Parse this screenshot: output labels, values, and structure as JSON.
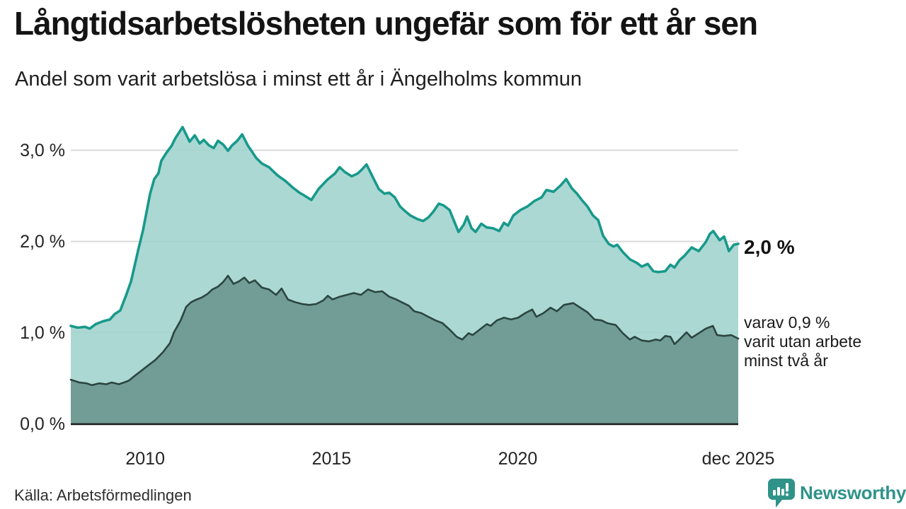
{
  "header": {
    "title": "Långtidsarbetslösheten ungefär som för ett år sen",
    "subtitle": "Andel som varit arbetslösa i minst ett år i Ängelholms kommun"
  },
  "chart_data": {
    "type": "area",
    "unit": "%",
    "title": "Långtidsarbetslösheten ungefär som för ett år sen",
    "subtitle": "Andel som varit arbetslösa i minst ett år i Ängelholms kommun",
    "grid": "horizontal",
    "x_axis": {
      "domain": [
        2008.0,
        2025.92
      ],
      "ticks": [
        {
          "v": 2010.0,
          "label": "2010"
        },
        {
          "v": 2015.0,
          "label": "2015"
        },
        {
          "v": 2020.0,
          "label": "2020"
        },
        {
          "v": 2025.92,
          "label": "dec 2025"
        }
      ]
    },
    "y_axis": {
      "ylim": [
        0,
        3.35
      ],
      "ticks": [
        {
          "v": 0,
          "label": "0,0 %"
        },
        {
          "v": 1,
          "label": "1,0 %"
        },
        {
          "v": 2,
          "label": "2,0 %"
        },
        {
          "v": 3,
          "label": "3,0 %"
        }
      ]
    },
    "colors": {
      "line_total": "#17998b",
      "fill_total": "#a3d4ce",
      "line_two_years": "#2b4540",
      "fill_two_years": "#709b95",
      "gridline": "#d7d7d7",
      "baseline": "#1b1b1b",
      "brand_teal": "#2f9389"
    },
    "series": [
      {
        "name": "arbetslösa minst ett år",
        "end_value": "2,0 %",
        "points": [
          [
            2008.0,
            1.07
          ],
          [
            2008.19,
            1.05
          ],
          [
            2008.38,
            1.06
          ],
          [
            2008.51,
            1.04
          ],
          [
            2008.67,
            1.09
          ],
          [
            2008.86,
            1.12
          ],
          [
            2009.05,
            1.14
          ],
          [
            2009.18,
            1.2
          ],
          [
            2009.33,
            1.24
          ],
          [
            2009.48,
            1.4
          ],
          [
            2009.62,
            1.56
          ],
          [
            2009.81,
            1.9
          ],
          [
            2009.94,
            2.12
          ],
          [
            2010.13,
            2.52
          ],
          [
            2010.24,
            2.68
          ],
          [
            2010.35,
            2.74
          ],
          [
            2010.43,
            2.88
          ],
          [
            2010.57,
            2.97
          ],
          [
            2010.7,
            3.04
          ],
          [
            2010.81,
            3.13
          ],
          [
            2011.0,
            3.25
          ],
          [
            2011.19,
            3.09
          ],
          [
            2011.33,
            3.16
          ],
          [
            2011.46,
            3.07
          ],
          [
            2011.57,
            3.11
          ],
          [
            2011.71,
            3.05
          ],
          [
            2011.84,
            3.02
          ],
          [
            2011.95,
            3.1
          ],
          [
            2012.09,
            3.06
          ],
          [
            2012.22,
            2.99
          ],
          [
            2012.33,
            3.05
          ],
          [
            2012.47,
            3.1
          ],
          [
            2012.6,
            3.17
          ],
          [
            2012.75,
            3.05
          ],
          [
            2012.85,
            2.99
          ],
          [
            2012.98,
            2.91
          ],
          [
            2013.13,
            2.85
          ],
          [
            2013.32,
            2.81
          ],
          [
            2013.55,
            2.72
          ],
          [
            2013.76,
            2.66
          ],
          [
            2013.95,
            2.59
          ],
          [
            2014.14,
            2.53
          ],
          [
            2014.27,
            2.5
          ],
          [
            2014.46,
            2.45
          ],
          [
            2014.65,
            2.57
          ],
          [
            2014.88,
            2.67
          ],
          [
            2015.09,
            2.74
          ],
          [
            2015.22,
            2.81
          ],
          [
            2015.35,
            2.76
          ],
          [
            2015.54,
            2.71
          ],
          [
            2015.7,
            2.74
          ],
          [
            2015.83,
            2.79
          ],
          [
            2015.94,
            2.84
          ],
          [
            2016.11,
            2.7
          ],
          [
            2016.27,
            2.57
          ],
          [
            2016.42,
            2.52
          ],
          [
            2016.55,
            2.53
          ],
          [
            2016.7,
            2.48
          ],
          [
            2016.84,
            2.38
          ],
          [
            2016.97,
            2.33
          ],
          [
            2017.12,
            2.28
          ],
          [
            2017.31,
            2.24
          ],
          [
            2017.46,
            2.22
          ],
          [
            2017.6,
            2.26
          ],
          [
            2017.73,
            2.32
          ],
          [
            2017.88,
            2.41
          ],
          [
            2018.01,
            2.39
          ],
          [
            2018.17,
            2.34
          ],
          [
            2018.3,
            2.21
          ],
          [
            2018.41,
            2.1
          ],
          [
            2018.55,
            2.18
          ],
          [
            2018.64,
            2.27
          ],
          [
            2018.76,
            2.14
          ],
          [
            2018.87,
            2.1
          ],
          [
            2019.02,
            2.19
          ],
          [
            2019.17,
            2.15
          ],
          [
            2019.34,
            2.14
          ],
          [
            2019.5,
            2.11
          ],
          [
            2019.63,
            2.2
          ],
          [
            2019.74,
            2.17
          ],
          [
            2019.88,
            2.28
          ],
          [
            2020.07,
            2.34
          ],
          [
            2020.26,
            2.38
          ],
          [
            2020.45,
            2.44
          ],
          [
            2020.64,
            2.48
          ],
          [
            2020.77,
            2.56
          ],
          [
            2020.96,
            2.54
          ],
          [
            2021.15,
            2.61
          ],
          [
            2021.3,
            2.68
          ],
          [
            2021.45,
            2.58
          ],
          [
            2021.59,
            2.52
          ],
          [
            2021.72,
            2.45
          ],
          [
            2021.87,
            2.38
          ],
          [
            2022.02,
            2.28
          ],
          [
            2022.16,
            2.23
          ],
          [
            2022.29,
            2.06
          ],
          [
            2022.44,
            1.97
          ],
          [
            2022.57,
            1.94
          ],
          [
            2022.67,
            1.96
          ],
          [
            2022.82,
            1.88
          ],
          [
            2023.01,
            1.8
          ],
          [
            2023.2,
            1.76
          ],
          [
            2023.33,
            1.72
          ],
          [
            2023.49,
            1.75
          ],
          [
            2023.64,
            1.67
          ],
          [
            2023.77,
            1.66
          ],
          [
            2023.96,
            1.67
          ],
          [
            2024.1,
            1.74
          ],
          [
            2024.21,
            1.71
          ],
          [
            2024.34,
            1.79
          ],
          [
            2024.48,
            1.84
          ],
          [
            2024.67,
            1.93
          ],
          [
            2024.86,
            1.89
          ],
          [
            2025.05,
            1.99
          ],
          [
            2025.16,
            2.08
          ],
          [
            2025.25,
            2.11
          ],
          [
            2025.42,
            2.01
          ],
          [
            2025.54,
            2.05
          ],
          [
            2025.67,
            1.89
          ],
          [
            2025.8,
            1.96
          ],
          [
            2025.92,
            1.97
          ]
        ]
      },
      {
        "name": "varav utan arbete minst två år",
        "end_value": "0,9 %",
        "points": [
          [
            2008.0,
            0.48
          ],
          [
            2008.23,
            0.45
          ],
          [
            2008.42,
            0.44
          ],
          [
            2008.57,
            0.42
          ],
          [
            2008.76,
            0.44
          ],
          [
            2008.95,
            0.43
          ],
          [
            2009.1,
            0.45
          ],
          [
            2009.29,
            0.43
          ],
          [
            2009.43,
            0.45
          ],
          [
            2009.56,
            0.47
          ],
          [
            2009.71,
            0.52
          ],
          [
            2009.9,
            0.58
          ],
          [
            2010.09,
            0.64
          ],
          [
            2010.28,
            0.7
          ],
          [
            2010.47,
            0.78
          ],
          [
            2010.66,
            0.88
          ],
          [
            2010.77,
            1.0
          ],
          [
            2010.95,
            1.13
          ],
          [
            2011.1,
            1.28
          ],
          [
            2011.23,
            1.33
          ],
          [
            2011.38,
            1.36
          ],
          [
            2011.51,
            1.38
          ],
          [
            2011.67,
            1.42
          ],
          [
            2011.8,
            1.47
          ],
          [
            2011.95,
            1.5
          ],
          [
            2012.09,
            1.55
          ],
          [
            2012.22,
            1.62
          ],
          [
            2012.37,
            1.53
          ],
          [
            2012.52,
            1.56
          ],
          [
            2012.66,
            1.6
          ],
          [
            2012.79,
            1.54
          ],
          [
            2012.94,
            1.57
          ],
          [
            2013.13,
            1.49
          ],
          [
            2013.32,
            1.47
          ],
          [
            2013.51,
            1.41
          ],
          [
            2013.66,
            1.48
          ],
          [
            2013.83,
            1.36
          ],
          [
            2014.02,
            1.33
          ],
          [
            2014.21,
            1.31
          ],
          [
            2014.4,
            1.3
          ],
          [
            2014.59,
            1.31
          ],
          [
            2014.78,
            1.35
          ],
          [
            2014.9,
            1.4
          ],
          [
            2015.03,
            1.36
          ],
          [
            2015.22,
            1.39
          ],
          [
            2015.41,
            1.41
          ],
          [
            2015.6,
            1.43
          ],
          [
            2015.79,
            1.41
          ],
          [
            2015.98,
            1.47
          ],
          [
            2016.17,
            1.44
          ],
          [
            2016.36,
            1.45
          ],
          [
            2016.55,
            1.39
          ],
          [
            2016.74,
            1.36
          ],
          [
            2016.93,
            1.32
          ],
          [
            2017.08,
            1.29
          ],
          [
            2017.22,
            1.23
          ],
          [
            2017.41,
            1.21
          ],
          [
            2017.6,
            1.17
          ],
          [
            2017.79,
            1.13
          ],
          [
            2017.98,
            1.1
          ],
          [
            2018.17,
            1.03
          ],
          [
            2018.36,
            0.95
          ],
          [
            2018.51,
            0.92
          ],
          [
            2018.68,
            0.99
          ],
          [
            2018.79,
            0.97
          ],
          [
            2018.98,
            1.03
          ],
          [
            2019.17,
            1.09
          ],
          [
            2019.27,
            1.07
          ],
          [
            2019.44,
            1.13
          ],
          [
            2019.63,
            1.16
          ],
          [
            2019.82,
            1.14
          ],
          [
            2020.01,
            1.16
          ],
          [
            2020.2,
            1.21
          ],
          [
            2020.39,
            1.25
          ],
          [
            2020.5,
            1.17
          ],
          [
            2020.69,
            1.21
          ],
          [
            2020.88,
            1.27
          ],
          [
            2021.05,
            1.23
          ],
          [
            2021.24,
            1.3
          ],
          [
            2021.49,
            1.32
          ],
          [
            2021.68,
            1.27
          ],
          [
            2021.87,
            1.22
          ],
          [
            2022.06,
            1.14
          ],
          [
            2022.25,
            1.13
          ],
          [
            2022.4,
            1.1
          ],
          [
            2022.63,
            1.08
          ],
          [
            2022.82,
            0.99
          ],
          [
            2023.01,
            0.92
          ],
          [
            2023.14,
            0.95
          ],
          [
            2023.33,
            0.91
          ],
          [
            2023.52,
            0.9
          ],
          [
            2023.71,
            0.92
          ],
          [
            2023.83,
            0.91
          ],
          [
            2023.96,
            0.96
          ],
          [
            2024.1,
            0.95
          ],
          [
            2024.21,
            0.87
          ],
          [
            2024.34,
            0.92
          ],
          [
            2024.53,
            1.0
          ],
          [
            2024.67,
            0.94
          ],
          [
            2024.86,
            0.99
          ],
          [
            2025.05,
            1.04
          ],
          [
            2025.24,
            1.07
          ],
          [
            2025.35,
            0.97
          ],
          [
            2025.54,
            0.96
          ],
          [
            2025.73,
            0.97
          ],
          [
            2025.92,
            0.93
          ]
        ]
      }
    ],
    "annotations": {
      "end_value_label": "2,0 %",
      "sub_label": "varav 0,9 %\nvarit utan arbete\nminst två år"
    }
  },
  "footer": {
    "source": "Källa: Arbetsförmedlingen",
    "brand": "Newsworthy"
  }
}
